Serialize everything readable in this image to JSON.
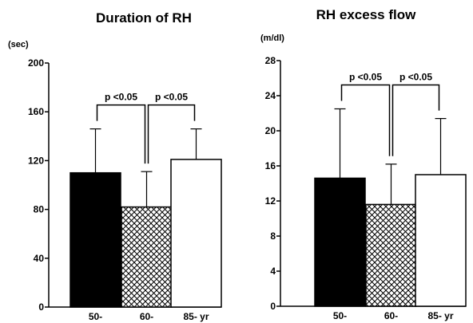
{
  "chart_data": [
    {
      "type": "bar",
      "title": "Duration of RH",
      "ylabel": "(sec)",
      "categories": [
        "50-",
        "60-",
        "85- yr"
      ],
      "values": [
        110,
        82,
        121
      ],
      "error_bars": [
        36,
        29,
        25
      ],
      "ylim": [
        0,
        200
      ],
      "yticks": [
        0,
        40,
        80,
        120,
        160,
        200
      ],
      "bar_fills": [
        "solid-black",
        "crosshatch",
        "white"
      ],
      "significance": [
        {
          "from": "50-",
          "to": "60-",
          "label": "p <0.05"
        },
        {
          "from": "60-",
          "to": "85- yr",
          "label": "p <0.05"
        }
      ],
      "grid": false
    },
    {
      "type": "bar",
      "title": "RH excess flow",
      "ylabel": "(m/dl)",
      "categories": [
        "50-",
        "60-",
        "85- yr"
      ],
      "values": [
        14.6,
        11.6,
        15.0
      ],
      "error_bars": [
        7.9,
        4.6,
        6.4
      ],
      "ylim": [
        0,
        28
      ],
      "yticks": [
        0,
        4,
        8,
        12,
        16,
        20,
        24,
        28
      ],
      "bar_fills": [
        "solid-black",
        "crosshatch",
        "white"
      ],
      "significance": [
        {
          "from": "50-",
          "to": "60-",
          "label": "p <0.05"
        },
        {
          "from": "60-",
          "to": "85- yr",
          "label": "p <0.05"
        }
      ],
      "grid": false
    }
  ]
}
